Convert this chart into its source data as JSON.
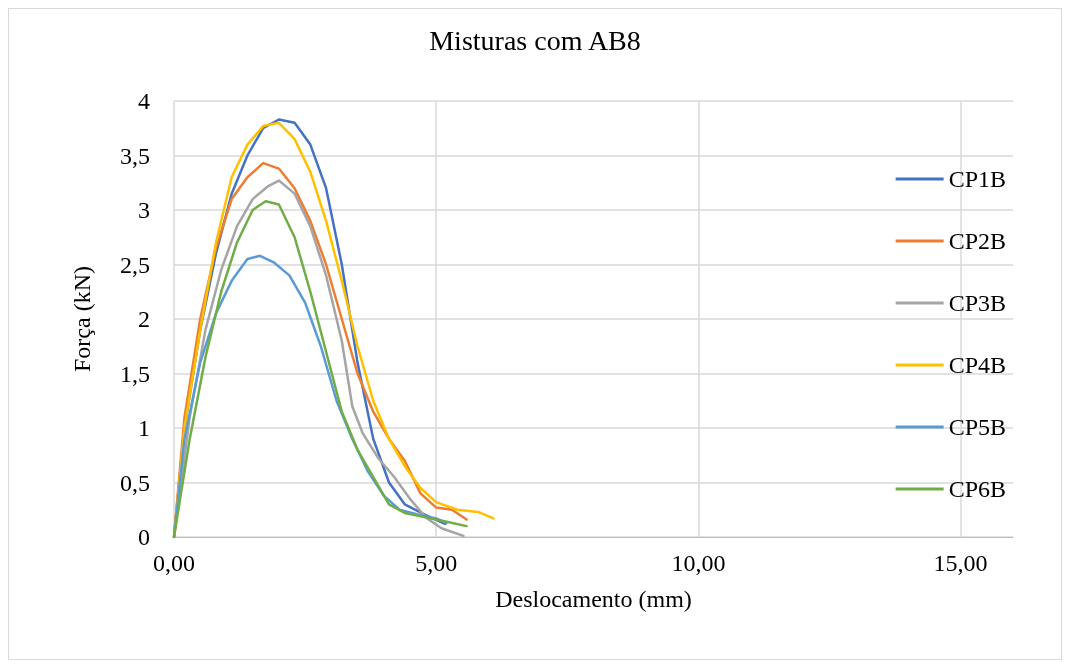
{
  "chart_data": {
    "type": "line",
    "title": "Misturas com AB8",
    "xlabel": "Deslocamento (mm)",
    "ylabel": "Força (kN)",
    "xlim": [
      0,
      16
    ],
    "xticks": [
      {
        "value": 0,
        "label": "0,00"
      },
      {
        "value": 5,
        "label": "5,00"
      },
      {
        "value": 10,
        "label": "10,00"
      },
      {
        "value": 15,
        "label": "15,00"
      }
    ],
    "ylim": [
      0,
      4
    ],
    "yticks": [
      0,
      {
        "value": 0.5,
        "label": "0,5"
      },
      1,
      {
        "value": 1.5,
        "label": "1,5"
      },
      2,
      {
        "value": 2.5,
        "label": "2,5"
      },
      3,
      {
        "value": 3.5,
        "label": "3,5"
      },
      4
    ],
    "grid": true,
    "legend": "right",
    "marker": "none",
    "line_style": "solid",
    "series": [
      {
        "name": "CP1B",
        "color": "#4472c4",
        "x": [
          0,
          0.2,
          0.5,
          0.8,
          1.1,
          1.4,
          1.7,
          2.0,
          2.3,
          2.6,
          2.9,
          3.2,
          3.5,
          3.8,
          4.1,
          4.4,
          4.8,
          5.17
        ],
        "values": [
          0,
          1.0,
          1.9,
          2.6,
          3.15,
          3.5,
          3.75,
          3.83,
          3.8,
          3.6,
          3.2,
          2.5,
          1.6,
          0.9,
          0.5,
          0.3,
          0.2,
          0.12
        ]
      },
      {
        "name": "CP2B",
        "color": "#ed7d31",
        "x": [
          0,
          0.2,
          0.5,
          0.8,
          1.1,
          1.4,
          1.7,
          2.0,
          2.3,
          2.6,
          2.9,
          3.2,
          3.5,
          3.8,
          4.1,
          4.4,
          4.7,
          5.0,
          5.3,
          5.58
        ],
        "values": [
          0,
          1.1,
          2.0,
          2.65,
          3.1,
          3.3,
          3.43,
          3.38,
          3.2,
          2.9,
          2.5,
          2.0,
          1.5,
          1.15,
          0.9,
          0.7,
          0.4,
          0.27,
          0.25,
          0.16
        ]
      },
      {
        "name": "CP3B",
        "color": "#a5a5a5",
        "x": [
          0,
          0.3,
          0.6,
          0.9,
          1.2,
          1.5,
          1.8,
          2.0,
          2.3,
          2.6,
          2.9,
          3.2,
          3.4,
          3.6,
          3.9,
          4.2,
          4.5,
          4.8,
          5.1,
          5.52
        ],
        "values": [
          0,
          1.1,
          1.9,
          2.45,
          2.85,
          3.1,
          3.22,
          3.27,
          3.15,
          2.85,
          2.4,
          1.8,
          1.2,
          0.95,
          0.72,
          0.55,
          0.35,
          0.18,
          0.08,
          0.01
        ]
      },
      {
        "name": "CP4B",
        "color": "#ffc000",
        "x": [
          0,
          0.2,
          0.5,
          0.8,
          1.1,
          1.4,
          1.7,
          2.0,
          2.3,
          2.6,
          2.9,
          3.2,
          3.5,
          3.8,
          4.1,
          4.4,
          4.7,
          5.0,
          5.4,
          5.8,
          6.09
        ],
        "values": [
          0,
          1.0,
          1.9,
          2.7,
          3.3,
          3.6,
          3.77,
          3.8,
          3.65,
          3.35,
          2.9,
          2.35,
          1.75,
          1.25,
          0.9,
          0.65,
          0.45,
          0.32,
          0.25,
          0.23,
          0.17
        ]
      },
      {
        "name": "CP5B",
        "color": "#5b9bd5",
        "x": [
          0,
          0.2,
          0.5,
          0.8,
          1.1,
          1.4,
          1.64,
          1.9,
          2.2,
          2.5,
          2.8,
          3.1,
          3.4,
          3.7,
          4.0,
          4.3,
          4.7,
          5.0,
          5.2
        ],
        "values": [
          0,
          0.9,
          1.6,
          2.05,
          2.35,
          2.55,
          2.58,
          2.52,
          2.4,
          2.15,
          1.75,
          1.25,
          0.9,
          0.6,
          0.38,
          0.25,
          0.2,
          0.17,
          0.13
        ]
      },
      {
        "name": "CP6B",
        "color": "#70ad47",
        "x": [
          0,
          0.3,
          0.6,
          0.9,
          1.2,
          1.5,
          1.75,
          2.0,
          2.3,
          2.6,
          2.9,
          3.2,
          3.5,
          3.8,
          4.1,
          4.4,
          4.8,
          5.2,
          5.58
        ],
        "values": [
          0,
          0.9,
          1.65,
          2.25,
          2.7,
          3.0,
          3.08,
          3.05,
          2.75,
          2.25,
          1.7,
          1.15,
          0.8,
          0.55,
          0.3,
          0.22,
          0.18,
          0.14,
          0.1
        ]
      }
    ]
  }
}
